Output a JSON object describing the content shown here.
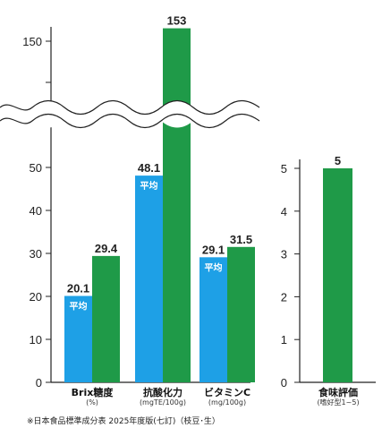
{
  "chart_data": [
    {
      "type": "bar",
      "categories": [
        {
          "label": "Brix糖度",
          "unit": "(%)"
        },
        {
          "label": "抗酸化力",
          "unit": "(mgTE/100g)"
        },
        {
          "label": "ビタミンC",
          "unit": "(mg/100g)"
        }
      ],
      "series": [
        {
          "name": "平均",
          "values": [
            20.1,
            48.1,
            29.1
          ],
          "labels": [
            "20.1",
            "48.1",
            "29.1"
          ],
          "color": "#1ea0e6"
        },
        {
          "values": [
            29.4,
            153,
            31.5
          ],
          "labels": [
            "29.4",
            "153",
            "31.5"
          ],
          "color": "#1f9a48"
        }
      ],
      "y_ticks": [
        0,
        10,
        20,
        30,
        40,
        50,
        150
      ],
      "axis_break": true,
      "ylim": [
        0,
        160
      ]
    },
    {
      "type": "bar",
      "categories": [
        {
          "label": "食味評価",
          "unit": "(嗜好型1~5)"
        }
      ],
      "series": [
        {
          "values": [
            5
          ],
          "labels": [
            "5"
          ],
          "color": "#1f9a48"
        }
      ],
      "y_ticks": [
        0,
        1,
        2,
        3,
        4,
        5
      ],
      "ylim": [
        0,
        5
      ]
    }
  ],
  "footnote": "※日本食品標準成分表 2025年度版(七訂)（枝豆･生）"
}
